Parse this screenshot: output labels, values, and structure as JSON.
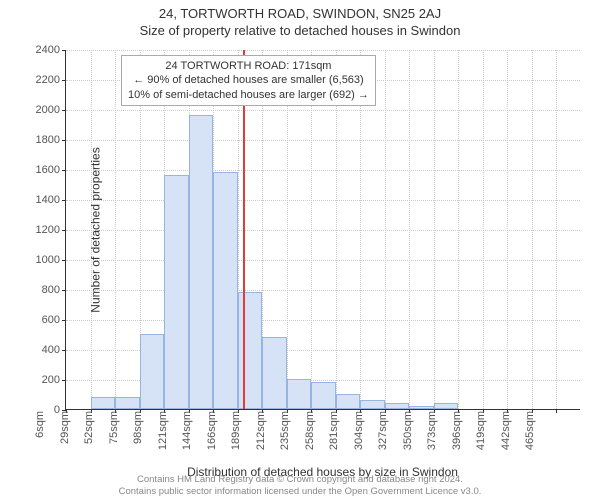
{
  "titles": {
    "main": "24, TORTWORTH ROAD, SWINDON, SN25 2AJ",
    "sub": "Size of property relative to detached houses in Swindon"
  },
  "axes": {
    "ylabel": "Number of detached properties",
    "xlabel": "Distribution of detached houses by size in Swindon",
    "ylim": [
      0,
      2400
    ],
    "ytick_step": 200,
    "xticks": [
      "6sqm",
      "29sqm",
      "52sqm",
      "75sqm",
      "98sqm",
      "121sqm",
      "144sqm",
      "166sqm",
      "189sqm",
      "212sqm",
      "235sqm",
      "258sqm",
      "281sqm",
      "304sqm",
      "327sqm",
      "350sqm",
      "373sqm",
      "396sqm",
      "419sqm",
      "442sqm",
      "465sqm"
    ]
  },
  "chart": {
    "type": "histogram",
    "bar_color": "#d6e2f5",
    "bar_border": "#98b4e0",
    "grid_color": "#cccccc",
    "values": [
      0,
      80,
      80,
      500,
      1560,
      1960,
      1580,
      780,
      480,
      200,
      180,
      100,
      60,
      40,
      20,
      40,
      0,
      0,
      0,
      0,
      0
    ],
    "vline_index": 7.2,
    "vline_color": "#e63939"
  },
  "info_box": {
    "line1": "24 TORTWORTH ROAD: 171sqm",
    "line2": "← 90% of detached houses are smaller (6,563)",
    "line3": "10% of semi-detached houses are larger (692) →"
  },
  "footer": {
    "line1": "Contains HM Land Registry data © Crown copyright and database right 2024.",
    "line2": "Contains public sector information licensed under the Open Government Licence v3.0."
  }
}
